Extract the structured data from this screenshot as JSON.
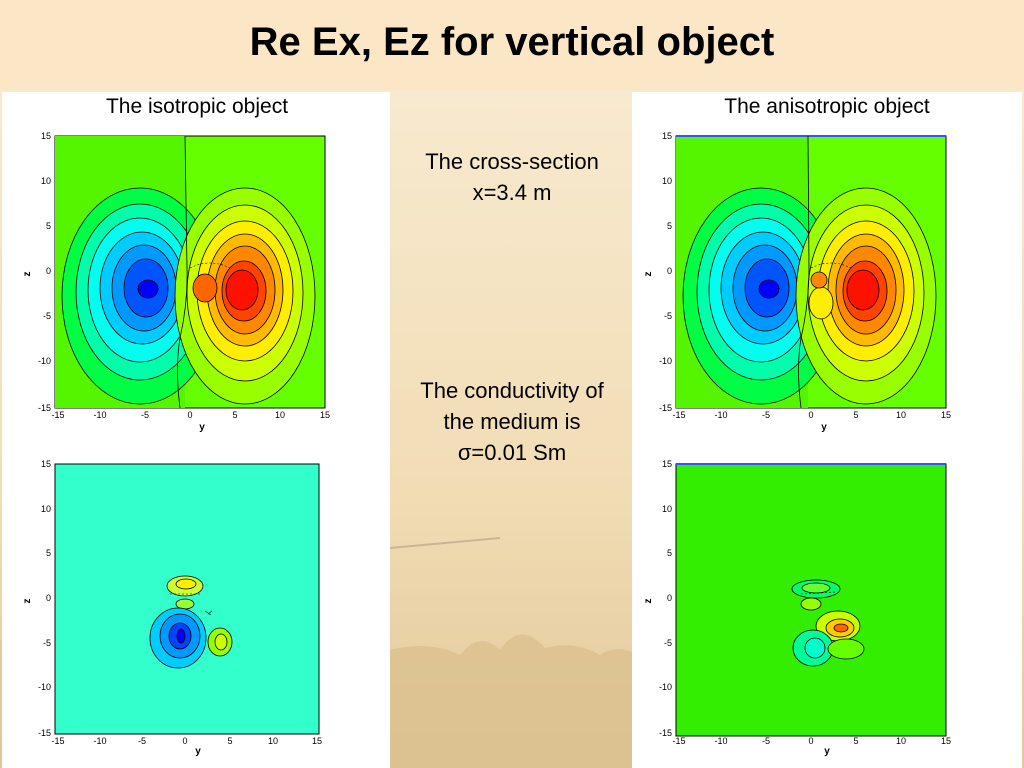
{
  "title": "Re Ex, Ez for vertical object",
  "left_panel_title": "The isotropic object",
  "right_panel_title": "The anisotropic object",
  "middle": {
    "cross_section_line1": "The cross-section",
    "cross_section_line2": "x=3.4 m",
    "conductivity_line1": "The conductivity of",
    "conductivity_line2": "the medium is",
    "conductivity_line3": "σ=0.01 Sm"
  },
  "plot_axes": {
    "xlabel": "y",
    "ylabel": "z",
    "x_ticks": [
      "-15",
      "-10",
      "-5",
      "0",
      "5",
      "10",
      "15"
    ],
    "y_ticks": [
      "15",
      "10",
      "5",
      "0",
      "-5",
      "-10",
      "-15"
    ]
  },
  "colors": {
    "background_green": "#66ff00",
    "background_cyan": "#33ffcc",
    "negative_core": "#0000ff",
    "positive_core": "#ff0000",
    "slide_background": "#f6e7c8"
  }
}
